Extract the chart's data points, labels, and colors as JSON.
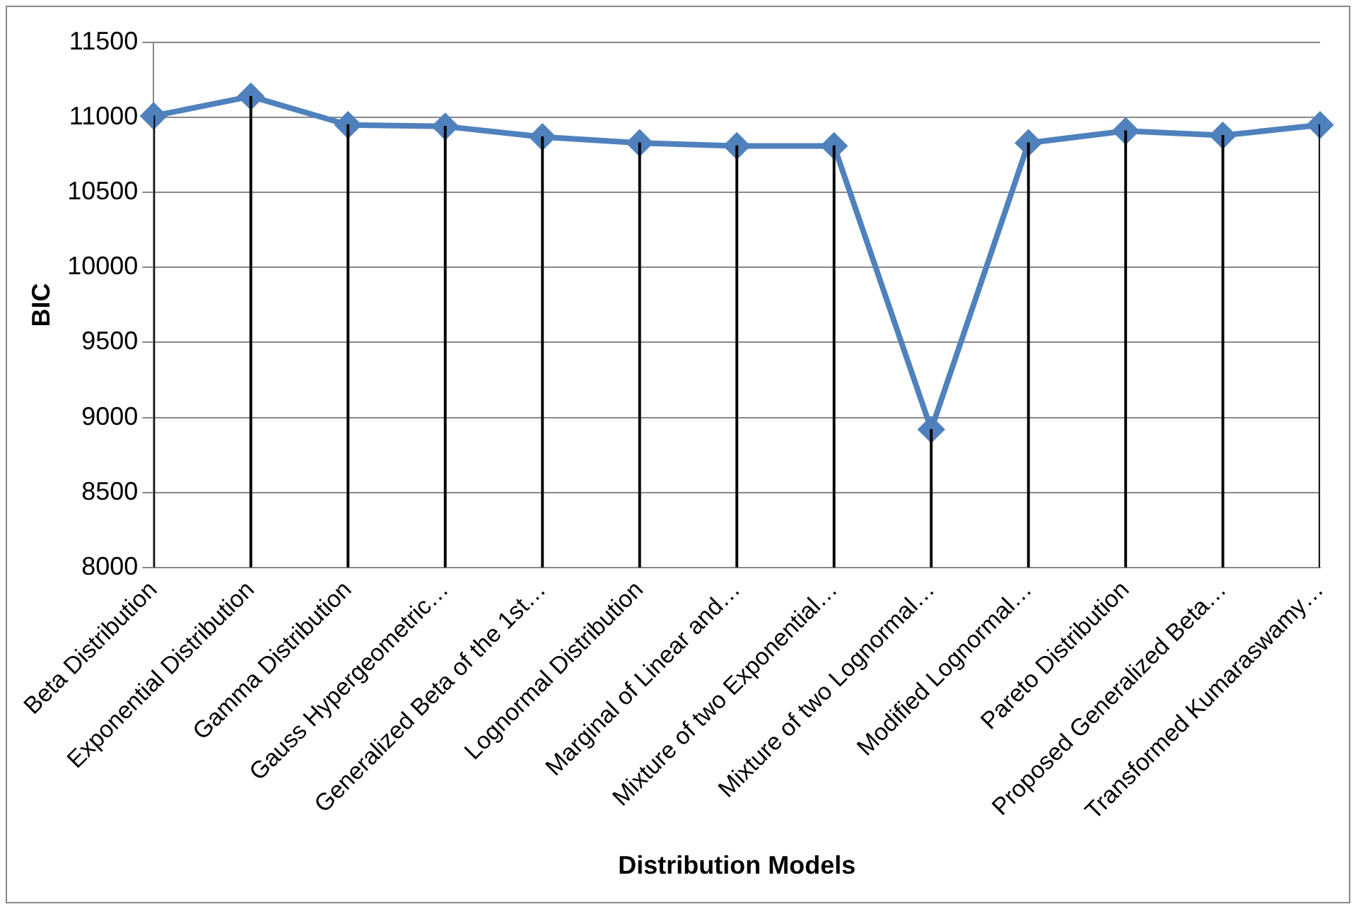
{
  "chart_data": {
    "type": "line",
    "xlabel": "Distribution Models",
    "ylabel": "BIC",
    "categories": [
      "Beta Distribution",
      "Exponential Distribution",
      "Gamma Distribution",
      "Gauss Hypergeometric…",
      "Generalized Beta of the 1st…",
      "Lognormal Distribution",
      "Marginal of Linear and…",
      "Mixture of two Exponential…",
      "Mixture of two Lognormal…",
      "Modified Lognormal…",
      "Pareto Distribution",
      "Proposed Generalized Beta…",
      "Transformed Kumaraswamy…"
    ],
    "series": [
      {
        "type": "bar",
        "color": "#000000",
        "values": [
          11010,
          11140,
          10950,
          10940,
          10870,
          10830,
          10810,
          10810,
          8920,
          10830,
          10910,
          10880,
          10950
        ]
      },
      {
        "color": "#4f81bd",
        "values": [
          11010,
          11140,
          10950,
          10940,
          10870,
          10830,
          10810,
          10810,
          8920,
          10830,
          10910,
          10880,
          10950
        ]
      }
    ],
    "ylim": [
      8000,
      11500
    ],
    "yticks": [
      8000,
      8500,
      9000,
      9500,
      10000,
      10500,
      11000,
      11500
    ],
    "grid": "y",
    "legend": false,
    "marker": "diamond",
    "line_style": "solid"
  }
}
